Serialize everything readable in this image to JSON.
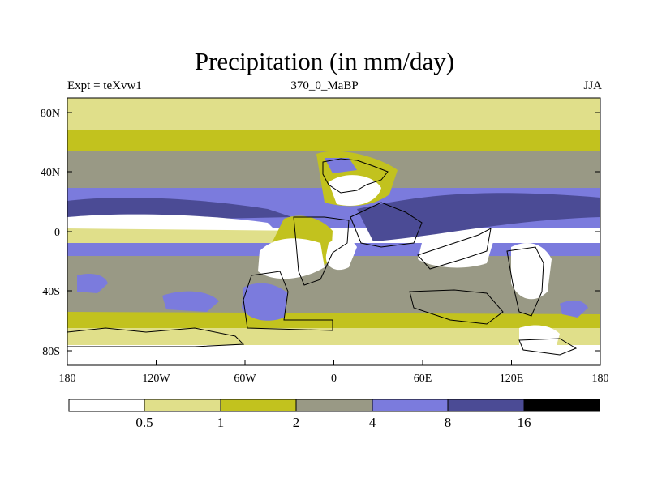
{
  "title": "Precipitation (in mm/day)",
  "subtitle_left": "Expt = teXvw1",
  "subtitle_center": "370_0_MaBP",
  "subtitle_right": "JJA",
  "x_ticks": [
    "180",
    "120W",
    "60W",
    "0",
    "60E",
    "120E",
    "180"
  ],
  "y_ticks": [
    "80N",
    "40N",
    "0",
    "40S",
    "80S"
  ],
  "colorbar": {
    "levels": [
      "0.5",
      "1",
      "2",
      "4",
      "8",
      "16"
    ],
    "colors": [
      "#ffffff",
      "#e0df8a",
      "#c2c21e",
      "#999985",
      "#7b7bdd",
      "#4b4b95",
      "#000000"
    ]
  },
  "chart_data": {
    "type": "heatmap",
    "title": "Precipitation (in mm/day)",
    "experiment": "teXvw1",
    "time_slice": "370_0_MaBP",
    "season": "JJA",
    "units": "mm/day",
    "xlim": [
      -180,
      180
    ],
    "ylim": [
      -90,
      90
    ],
    "contour_levels": [
      0.5,
      1,
      2,
      4,
      8,
      16
    ],
    "bands": [
      {
        "lat_range": [
          65,
          90
        ],
        "category": "0.5-1"
      },
      {
        "lat_range": [
          55,
          65
        ],
        "category": "1-2"
      },
      {
        "lat_range": [
          25,
          55
        ],
        "category": "2-4"
      },
      {
        "lat_range": [
          14,
          25
        ],
        "category": "4-8"
      },
      {
        "lat_range": [
          3,
          14
        ],
        "category": "8-16"
      },
      {
        "lat_range": [
          -8,
          3
        ],
        "category": "0.5-4"
      },
      {
        "lat_range": [
          -60,
          -8
        ],
        "category": "2-4"
      },
      {
        "lat_range": [
          -75,
          -60
        ],
        "category": "1-2"
      },
      {
        "lat_range": [
          -90,
          -75
        ],
        "category": "<0.5"
      }
    ]
  }
}
